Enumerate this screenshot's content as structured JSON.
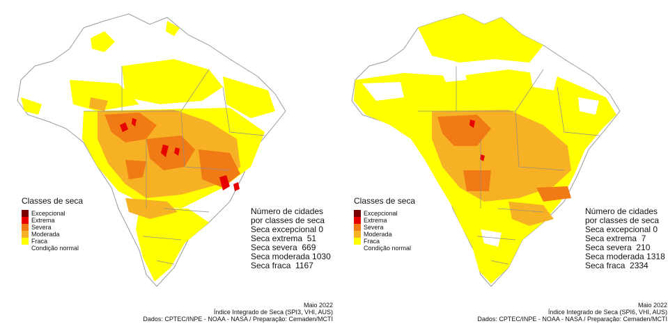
{
  "panels": [
    {
      "legend": {
        "title": "Classes de seca",
        "items": [
          {
            "label": "Excepcional",
            "color": "#7a0000"
          },
          {
            "label": "Extrema",
            "color": "#e60000"
          },
          {
            "label": "Severa",
            "color": "#f07a14"
          },
          {
            "label": "Moderada",
            "color": "#f7b124"
          },
          {
            "label": "Fraca",
            "color": "#ffff00"
          },
          {
            "label": "Condição normal",
            "color": "#ffffff"
          }
        ]
      },
      "counts": {
        "heading1": "Número de cidades",
        "heading2": "por classes de seca",
        "lines": [
          "Seca excepcional 0",
          "Seca extrema  51",
          "Seca severa  669",
          "Seca moderada 1030",
          "Seca fraca  1167"
        ]
      },
      "footer": {
        "date": "Maio 2022",
        "index": "Índice Integrado de Seca (SPI3, VHI, AUS)",
        "credits": "Dados: CPTEC/INPE - NOAA - NASA / Preparação: Cemaden/MCTI"
      }
    },
    {
      "legend": {
        "title": "Classes de seca",
        "items": [
          {
            "label": "Excepcional",
            "color": "#7a0000"
          },
          {
            "label": "Extrema",
            "color": "#e60000"
          },
          {
            "label": "Severa",
            "color": "#f07a14"
          },
          {
            "label": "Moderada",
            "color": "#f7b124"
          },
          {
            "label": "Fraca",
            "color": "#ffff00"
          },
          {
            "label": "Condição normal",
            "color": "#ffffff"
          }
        ]
      },
      "counts": {
        "heading1": "Número de cidades",
        "heading2": "por classes de seca",
        "lines": [
          "Seca excepcional 0",
          "Seca extrema  7",
          "Seca severa  210",
          "Seca moderada 1318",
          "Seca fraca  2334"
        ]
      },
      "footer": {
        "date": "Maio 2022",
        "index": "Índice Integrado de Seca (SPI6, VHI, AUS)",
        "credits": "Dados: CPTEC/INPE - NOAA - NASA / Preparação: Cemaden/MCTI"
      }
    }
  ]
}
